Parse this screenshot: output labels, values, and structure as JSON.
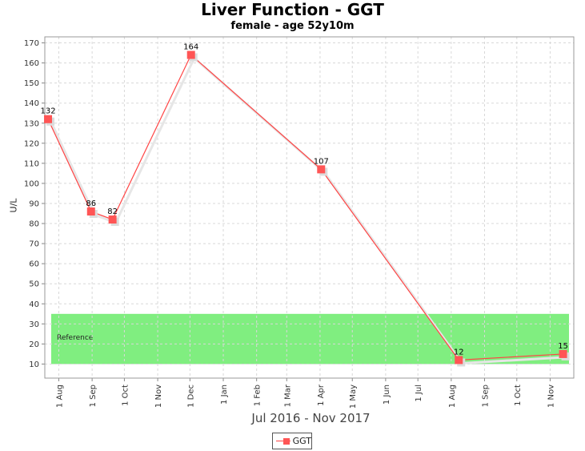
{
  "title": "Liver Function - GGT",
  "subtitle": "female - age 52y10m",
  "chart_data": {
    "type": "line",
    "title": "Liver Function - GGT",
    "subtitle": "female - age 52y10m",
    "xlabel": "Jul 2016 - Nov 2017",
    "ylabel": "U/L",
    "ylim": [
      3,
      173
    ],
    "y_ticks": [
      10,
      20,
      30,
      40,
      50,
      60,
      70,
      80,
      90,
      100,
      110,
      120,
      130,
      140,
      150,
      160,
      170
    ],
    "x_tick_labels": [
      "1 Aug",
      "1 Sep",
      "1 Oct",
      "1 Nov",
      "1 Dec",
      "1 Jan",
      "1 Feb",
      "1 Mar",
      "1 Apr",
      "1 May",
      "1 Jun",
      "1 Jul",
      "1 Aug",
      "1 Sep",
      "1 Oct",
      "1 Nov"
    ],
    "x_range": [
      "2016-07-19",
      "2017-11-23"
    ],
    "grid": true,
    "legend_position": "bottom-center",
    "reference_band": {
      "label": "Reference",
      "low": 10,
      "high": 35,
      "color": "#80ee80"
    },
    "series": [
      {
        "name": "GGT",
        "color": "#ff4444",
        "marker_color": "#ff5555",
        "points": [
          {
            "x": "2016-07-22",
            "y": 132
          },
          {
            "x": "2016-08-31",
            "y": 86
          },
          {
            "x": "2016-09-20",
            "y": 82
          },
          {
            "x": "2016-12-02",
            "y": 164
          },
          {
            "x": "2017-04-02",
            "y": 107
          },
          {
            "x": "2017-08-08",
            "y": 12
          },
          {
            "x": "2017-11-13",
            "y": 15
          }
        ]
      }
    ]
  }
}
